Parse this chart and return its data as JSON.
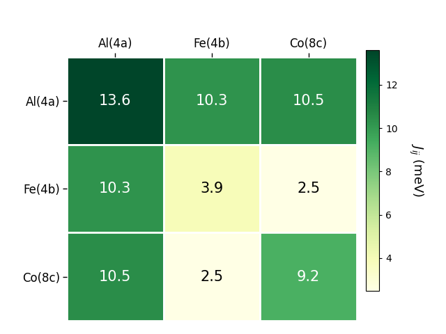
{
  "matrix": [
    [
      13.6,
      10.3,
      10.5
    ],
    [
      10.3,
      3.9,
      2.5
    ],
    [
      10.5,
      2.5,
      9.2
    ]
  ],
  "row_labels": [
    "Al(4a)",
    "Fe(4b)",
    "Co(8c)"
  ],
  "col_labels": [
    "Al(4a)",
    "Fe(4b)",
    "Co(8c)"
  ],
  "colorbar_label": "$J_{ij}$ (meV)",
  "vmin": 2.5,
  "vmax": 13.6,
  "cmap": "YlGn",
  "text_color_threshold": 7.0,
  "figsize": [
    6.4,
    4.8
  ],
  "dpi": 100,
  "background_color": "#ffffff",
  "cell_text_fontsize": 15,
  "label_fontsize": 12,
  "colorbar_tick_fontsize": 10,
  "colorbar_ticks": [
    4,
    6,
    8,
    10,
    12
  ]
}
